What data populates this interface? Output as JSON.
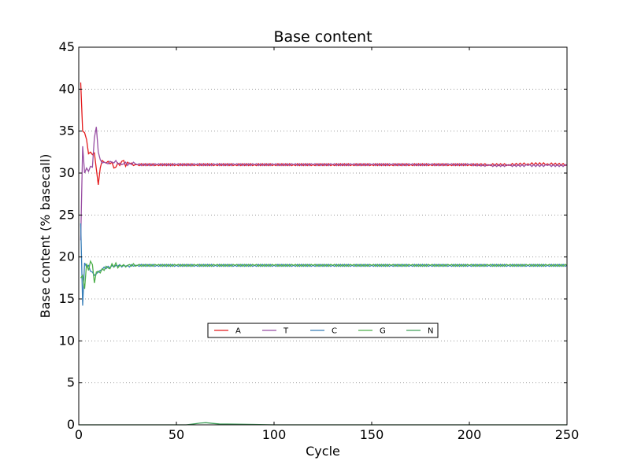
{
  "chart_data": {
    "type": "line",
    "title": "Base content",
    "xlabel": "Cycle",
    "ylabel": "Base content (% basecall)",
    "xlim": [
      0,
      250
    ],
    "ylim": [
      0,
      45
    ],
    "xticks": [
      0,
      50,
      100,
      150,
      200,
      250
    ],
    "yticks": [
      0,
      5,
      10,
      15,
      20,
      25,
      30,
      35,
      40,
      45
    ],
    "grid": "horizontal-dotted",
    "legend_position": "center-bottom",
    "series": [
      {
        "name": "A",
        "color": "#e41a1c",
        "points": [
          [
            1,
            40.8
          ],
          [
            2,
            35
          ],
          [
            3,
            34.8
          ],
          [
            4,
            34
          ],
          [
            5,
            32.3
          ],
          [
            6,
            32.5
          ],
          [
            7,
            32.2
          ],
          [
            8,
            32.4
          ],
          [
            9,
            30.5
          ],
          [
            10,
            28.6
          ],
          [
            11,
            30.6
          ],
          [
            12,
            31.5
          ],
          [
            13,
            31.3
          ],
          [
            14,
            31.2
          ],
          [
            15,
            31.4
          ],
          [
            16,
            31.1
          ],
          [
            17,
            31.3
          ],
          [
            18,
            30.6
          ],
          [
            19,
            30.7
          ],
          [
            20,
            31.2
          ],
          [
            21,
            30.9
          ],
          [
            22,
            31.4
          ],
          [
            23,
            31.5
          ],
          [
            24,
            30.8
          ],
          [
            25,
            31.3
          ],
          [
            26,
            31.1
          ],
          [
            27,
            31.2
          ],
          [
            28,
            30.9
          ],
          [
            29,
            31.0
          ],
          [
            30,
            31.0
          ],
          [
            40,
            31.0
          ],
          [
            50,
            31.0
          ],
          [
            60,
            31.0
          ],
          [
            70,
            31.0
          ],
          [
            80,
            31.0
          ],
          [
            90,
            31.0
          ],
          [
            100,
            31.0
          ],
          [
            110,
            31.0
          ],
          [
            120,
            31.0
          ],
          [
            130,
            31.0
          ],
          [
            140,
            31.0
          ],
          [
            150,
            31.0
          ],
          [
            160,
            31.0
          ],
          [
            170,
            31.0
          ],
          [
            180,
            31.0
          ],
          [
            190,
            31.0
          ],
          [
            200,
            31.0
          ],
          [
            210,
            31.0
          ],
          [
            220,
            31.0
          ],
          [
            230,
            31.1
          ],
          [
            240,
            31.1
          ],
          [
            250,
            31.0
          ]
        ]
      },
      {
        "name": "T",
        "color": "#984ea3",
        "points": [
          [
            1,
            22
          ],
          [
            2,
            33.2
          ],
          [
            3,
            30
          ],
          [
            4,
            30.6
          ],
          [
            5,
            30.2
          ],
          [
            6,
            30.8
          ],
          [
            7,
            30.7
          ],
          [
            8,
            34.2
          ],
          [
            9,
            35.5
          ],
          [
            10,
            32.5
          ],
          [
            11,
            31.6
          ],
          [
            12,
            31.2
          ],
          [
            13,
            31.3
          ],
          [
            14,
            31.2
          ],
          [
            15,
            31.1
          ],
          [
            16,
            31.4
          ],
          [
            17,
            31.3
          ],
          [
            18,
            31.2
          ],
          [
            19,
            31.5
          ],
          [
            20,
            31.1
          ],
          [
            21,
            31.2
          ],
          [
            22,
            31.0
          ],
          [
            23,
            31.1
          ],
          [
            24,
            31.3
          ],
          [
            25,
            30.9
          ],
          [
            26,
            31.2
          ],
          [
            27,
            31.0
          ],
          [
            28,
            31.3
          ],
          [
            29,
            31.1
          ],
          [
            30,
            31.0
          ],
          [
            40,
            31.0
          ],
          [
            50,
            31.0
          ],
          [
            60,
            31.0
          ],
          [
            70,
            31.0
          ],
          [
            80,
            31.0
          ],
          [
            90,
            31.0
          ],
          [
            100,
            31.0
          ],
          [
            110,
            31.0
          ],
          [
            120,
            31.0
          ],
          [
            130,
            31.0
          ],
          [
            140,
            31.0
          ],
          [
            150,
            31.0
          ],
          [
            160,
            31.0
          ],
          [
            170,
            31.0
          ],
          [
            180,
            31.0
          ],
          [
            190,
            31.0
          ],
          [
            200,
            31.0
          ],
          [
            210,
            30.9
          ],
          [
            220,
            30.9
          ],
          [
            230,
            30.9
          ],
          [
            240,
            30.9
          ],
          [
            250,
            30.9
          ]
        ]
      },
      {
        "name": "C",
        "color": "#377eb8",
        "points": [
          [
            1,
            24
          ],
          [
            2,
            14.2
          ],
          [
            3,
            19.3
          ],
          [
            4,
            18.8
          ],
          [
            5,
            19
          ],
          [
            6,
            18.3
          ],
          [
            7,
            18.2
          ],
          [
            8,
            17.8
          ],
          [
            9,
            18
          ],
          [
            10,
            18.2
          ],
          [
            11,
            18.4
          ],
          [
            12,
            18.5
          ],
          [
            13,
            18.8
          ],
          [
            14,
            18.6
          ],
          [
            15,
            18.9
          ],
          [
            16,
            18.7
          ],
          [
            17,
            19.0
          ],
          [
            18,
            18.8
          ],
          [
            19,
            19.0
          ],
          [
            20,
            18.9
          ],
          [
            21,
            19.1
          ],
          [
            22,
            18.8
          ],
          [
            23,
            19.0
          ],
          [
            24,
            18.9
          ],
          [
            25,
            19.0
          ],
          [
            26,
            18.8
          ],
          [
            27,
            19.1
          ],
          [
            28,
            18.9
          ],
          [
            29,
            19.0
          ],
          [
            30,
            19.0
          ],
          [
            40,
            19.0
          ],
          [
            50,
            19.0
          ],
          [
            60,
            19.0
          ],
          [
            70,
            19.0
          ],
          [
            80,
            19.0
          ],
          [
            90,
            19.0
          ],
          [
            100,
            19.0
          ],
          [
            110,
            19.0
          ],
          [
            120,
            19.0
          ],
          [
            130,
            19.0
          ],
          [
            140,
            19.0
          ],
          [
            150,
            19.0
          ],
          [
            160,
            19.0
          ],
          [
            170,
            19.0
          ],
          [
            180,
            19.0
          ],
          [
            190,
            19.0
          ],
          [
            200,
            19.0
          ],
          [
            210,
            19.0
          ],
          [
            220,
            19.0
          ],
          [
            230,
            19.0
          ],
          [
            240,
            19.0
          ],
          [
            250,
            19.0
          ]
        ]
      },
      {
        "name": "G",
        "color": "#4daf4a",
        "points": [
          [
            1,
            17.5
          ],
          [
            2,
            17.8
          ],
          [
            3,
            16.2
          ],
          [
            4,
            19.2
          ],
          [
            5,
            18.4
          ],
          [
            6,
            19.5
          ],
          [
            7,
            19.1
          ],
          [
            8,
            16.9
          ],
          [
            9,
            18.2
          ],
          [
            10,
            18.3
          ],
          [
            11,
            18.1
          ],
          [
            12,
            18.6
          ],
          [
            13,
            18.4
          ],
          [
            14,
            18.9
          ],
          [
            15,
            18.7
          ],
          [
            16,
            18.6
          ],
          [
            17,
            19.2
          ],
          [
            18,
            18.8
          ],
          [
            19,
            19.3
          ],
          [
            20,
            18.7
          ],
          [
            21,
            19.0
          ],
          [
            22,
            18.9
          ],
          [
            23,
            19.1
          ],
          [
            24,
            18.8
          ],
          [
            25,
            19.0
          ],
          [
            26,
            19.1
          ],
          [
            27,
            18.9
          ],
          [
            28,
            19.2
          ],
          [
            29,
            18.9
          ],
          [
            30,
            19.0
          ],
          [
            40,
            19.0
          ],
          [
            50,
            19.0
          ],
          [
            60,
            19.0
          ],
          [
            70,
            19.0
          ],
          [
            80,
            19.0
          ],
          [
            90,
            19.0
          ],
          [
            100,
            19.0
          ],
          [
            110,
            19.0
          ],
          [
            120,
            19.0
          ],
          [
            130,
            19.0
          ],
          [
            140,
            19.0
          ],
          [
            150,
            19.0
          ],
          [
            160,
            19.0
          ],
          [
            170,
            19.0
          ],
          [
            180,
            19.0
          ],
          [
            190,
            19.0
          ],
          [
            200,
            19.0
          ],
          [
            210,
            19.0
          ],
          [
            220,
            19.0
          ],
          [
            230,
            19.0
          ],
          [
            240,
            19.0
          ],
          [
            250,
            19.0
          ]
        ]
      },
      {
        "name": "N",
        "color": "#41a05b",
        "points": [
          [
            0,
            0
          ],
          [
            55,
            0
          ],
          [
            58,
            0.08
          ],
          [
            62,
            0.2
          ],
          [
            65,
            0.25
          ],
          [
            68,
            0.18
          ],
          [
            72,
            0.1
          ],
          [
            80,
            0.08
          ],
          [
            90,
            0.04
          ],
          [
            100,
            0.0
          ],
          [
            250,
            0
          ]
        ]
      }
    ]
  }
}
